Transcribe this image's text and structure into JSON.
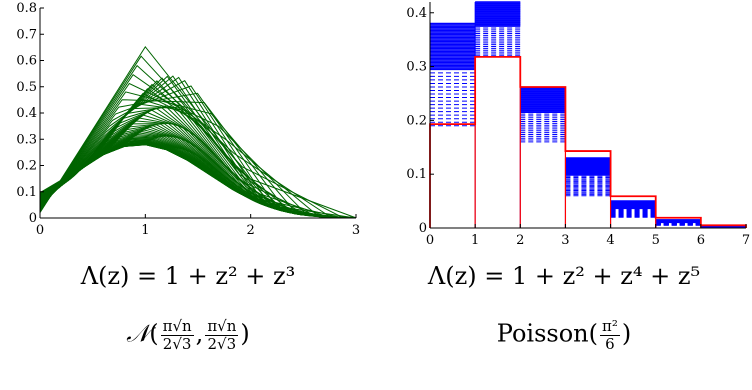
{
  "chart_data": [
    {
      "type": "line",
      "title": "",
      "xlabel": "",
      "ylabel": "",
      "xlim": [
        0,
        3
      ],
      "ylim": [
        0,
        0.8
      ],
      "x_ticks": [
        "0",
        "1",
        "2",
        "3"
      ],
      "y_ticks": [
        "0",
        "0.1",
        "0.2",
        "0.3",
        "0.4",
        "0.5",
        "0.6",
        "0.7",
        "0.8"
      ],
      "series_color": "#006400",
      "curve_family": {
        "description_peak_range": [
          0.28,
          0.72
        ],
        "peak_x_range": [
          0.95,
          1.2
        ],
        "count": 60
      },
      "caption": {
        "formula": "Λ(z) = 1 + z² + z³",
        "limit_law_symbol": "𝒩",
        "limit_law_num": "π√n",
        "limit_law_den": "2√3"
      }
    },
    {
      "type": "bar",
      "title": "",
      "xlabel": "",
      "ylabel": "",
      "xlim": [
        0,
        7
      ],
      "ylim": [
        0,
        0.42
      ],
      "x_ticks": [
        "0",
        "1",
        "2",
        "3",
        "4",
        "5",
        "6",
        "7"
      ],
      "y_ticks": [
        "0",
        "0.1",
        "0.2",
        "0.3",
        "0.4"
      ],
      "limit_color": "#ff0000",
      "empirical_color": "#0000ff",
      "categories": [
        "0",
        "1",
        "2",
        "3",
        "4",
        "5",
        "6"
      ],
      "limit_values": [
        0.193,
        0.318,
        0.262,
        0.143,
        0.059,
        0.019,
        0.005
      ],
      "empirical_ranges": [
        [
          0.19,
          0.38
        ],
        [
          0.32,
          0.42
        ],
        [
          0.16,
          0.26
        ],
        [
          0.06,
          0.13
        ],
        [
          0.02,
          0.05
        ],
        [
          0.005,
          0.015
        ],
        [
          0.0,
          0.004
        ]
      ],
      "caption": {
        "formula": "Λ(z) = 1 + z² + z⁴ + z⁵",
        "limit_law": "Poisson",
        "param_num": "π²",
        "param_den": "6"
      }
    }
  ]
}
